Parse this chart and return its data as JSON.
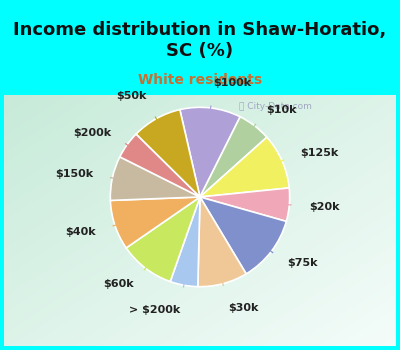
{
  "title": "Income distribution in Shaw-Horatio,\nSC (%)",
  "subtitle": "White residents",
  "title_color": "#111111",
  "subtitle_color": "#c87030",
  "bg_cyan": "#00ffff",
  "bg_chart_tl": "#c8e8d8",
  "bg_chart_br": "#f0f8f4",
  "labels": [
    "$100k",
    "$10k",
    "$125k",
    "$20k",
    "$75k",
    "$30k",
    "> $200k",
    "$60k",
    "$40k",
    "$150k",
    "$200k",
    "$50k"
  ],
  "sizes": [
    11,
    6,
    10,
    6,
    12,
    9,
    5,
    10,
    9,
    8,
    5,
    9
  ],
  "colors": [
    "#b0a0d8",
    "#b0d0a0",
    "#f0f060",
    "#f0a8b8",
    "#8090cc",
    "#f0c898",
    "#a8c8f0",
    "#c8e860",
    "#f0b060",
    "#c8baa0",
    "#e08888",
    "#c8a820"
  ],
  "startangle": 103,
  "title_fontsize": 13,
  "subtitle_fontsize": 10,
  "label_fontsize": 8
}
